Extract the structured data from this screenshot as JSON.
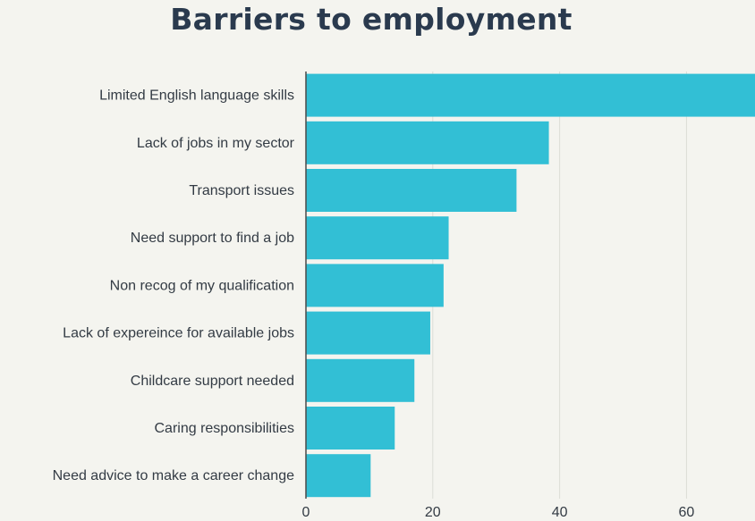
{
  "chart_data": {
    "type": "bar",
    "orientation": "horizontal",
    "title": "Barriers to employment",
    "xlabel": "",
    "ylabel": "",
    "categories": [
      "Limited English language skills",
      "Lack of jobs in my sector",
      "Transport issues",
      "Need support to find a job",
      "Non recog of my qualification",
      "Lack of expereince for available jobs",
      "Childcare support needed",
      "Caring responsibilities",
      "Need advice to make a career change"
    ],
    "values": [
      72,
      38.3,
      33.2,
      22.5,
      21.7,
      19.6,
      17.1,
      14,
      10.2
    ],
    "xlim": [
      0,
      70.8
    ],
    "xticks": [
      0,
      20,
      40,
      60
    ],
    "grid": true,
    "legend": "none",
    "colors": {
      "bar": "#32bfd5",
      "grid": "#dcddd6",
      "text": "#333b44",
      "title": "#2a3a4e",
      "background": "#f4f4ef"
    }
  }
}
